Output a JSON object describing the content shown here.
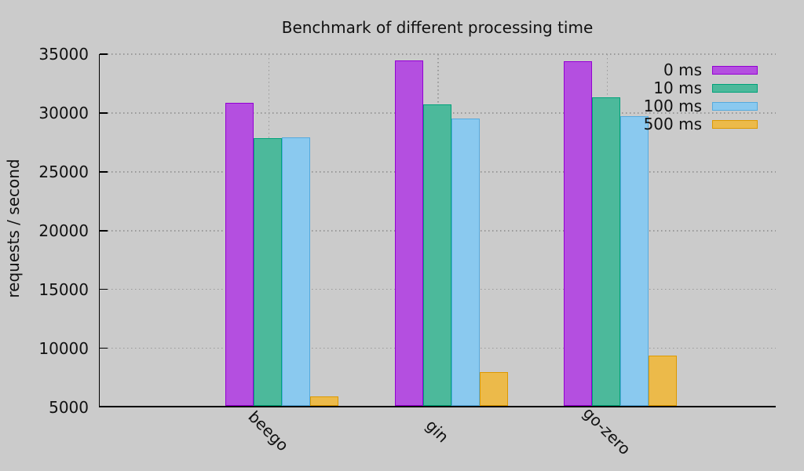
{
  "chart_data": {
    "type": "bar",
    "title": "Benchmark of different processing time",
    "xlabel": "",
    "ylabel": "requests / second",
    "categories": [
      "beego",
      "gin",
      "go-zero"
    ],
    "series": [
      {
        "name": "0 ms",
        "fill": "#b44fe0",
        "border": "#9400d3",
        "values": [
          30750,
          34350,
          34300
        ]
      },
      {
        "name": "10 ms",
        "fill": "#4cb99b",
        "border": "#00a27a",
        "values": [
          27750,
          30650,
          31250
        ]
      },
      {
        "name": "100 ms",
        "fill": "#8ac9ef",
        "border": "#55aade",
        "values": [
          27850,
          29400,
          29600
        ]
      },
      {
        "name": "500 ms",
        "fill": "#ecba4a",
        "border": "#dd9900",
        "values": [
          5800,
          7900,
          9250
        ]
      }
    ],
    "ylim": [
      5000,
      35000
    ],
    "yticks": [
      5000,
      10000,
      15000,
      20000,
      25000,
      30000,
      35000
    ],
    "grid": true,
    "grid_style": "dotted",
    "legend_position": "top-right",
    "background": "#cbcbcb",
    "axis_color": "#000000"
  }
}
